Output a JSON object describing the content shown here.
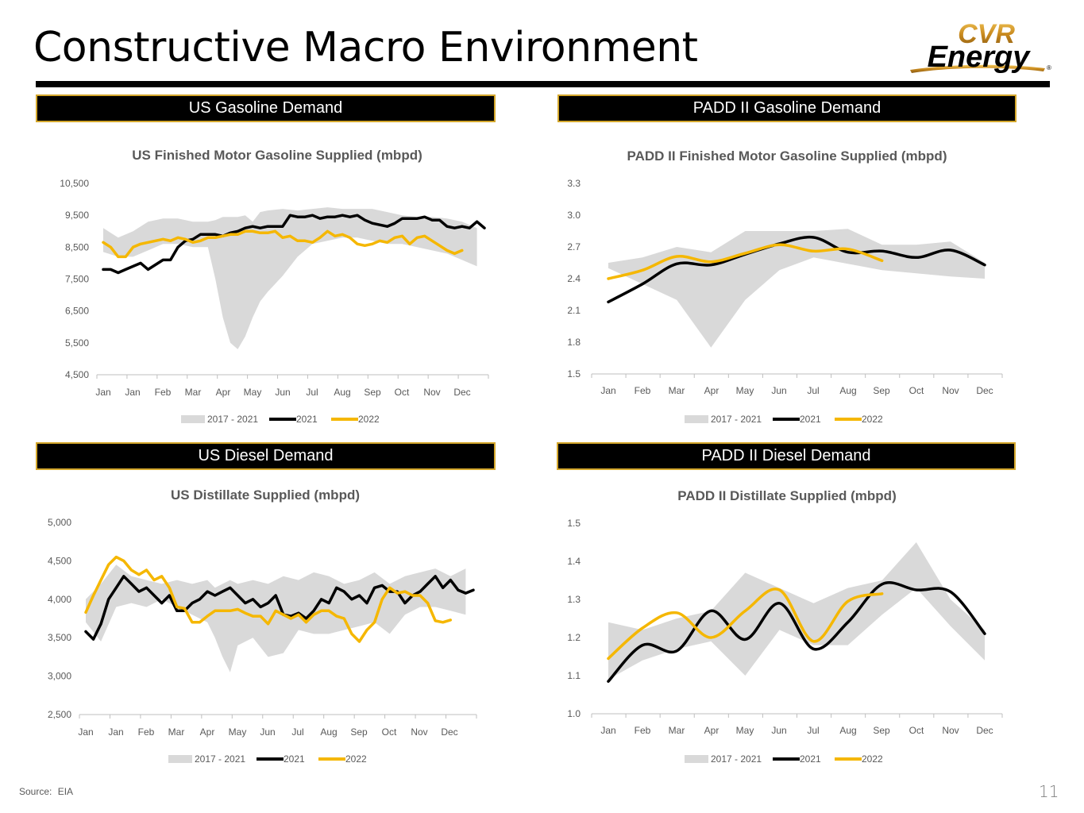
{
  "page": {
    "title": "Constructive Macro Environment",
    "logo_text_top": "CVR",
    "logo_text_bottom": "Energy",
    "logo_mark": "®",
    "source_label": "Source:",
    "source_value": "EIA",
    "page_number": "11"
  },
  "banners": {
    "us_gasoline": "US Gasoline Demand",
    "padd_gasoline": "PADD II Gasoline Demand",
    "us_diesel": "US Diesel Demand",
    "padd_diesel": "PADD II Diesel Demand"
  },
  "colors": {
    "accent_gold": "#d4a72c",
    "series_2022": "#f5b700",
    "series_2021": "#000000",
    "range_band": "#d9d9d9",
    "axis_text": "#595959"
  },
  "chart_data": [
    {
      "id": "us_gas",
      "type": "line",
      "title": "US Finished Motor Gasoline Supplied (mbpd)",
      "categories": [
        "Jan",
        "Jan",
        "Feb",
        "Mar",
        "Apr",
        "May",
        "Jun",
        "Jul",
        "Aug",
        "Sep",
        "Oct",
        "Nov",
        "Dec"
      ],
      "yticks": [
        "4,500",
        "5,500",
        "6,500",
        "7,500",
        "8,500",
        "9,500",
        "10,500"
      ],
      "ylim": [
        4500,
        10500
      ],
      "xlim": [
        0,
        51
      ],
      "legend": [
        "2017 - 2021",
        "2021",
        "2022"
      ],
      "legend_position": "bottom",
      "band": {
        "x": [
          0,
          2,
          4,
          6,
          8,
          10,
          12,
          14,
          15,
          16,
          17,
          18,
          19,
          20,
          21,
          22,
          24,
          26,
          28,
          30,
          32,
          34,
          36,
          38,
          40,
          42,
          44,
          46,
          48,
          49,
          50
        ],
        "high": [
          9100,
          8800,
          9000,
          9300,
          9400,
          9400,
          9300,
          9300,
          9350,
          9450,
          9450,
          9450,
          9500,
          9300,
          9600,
          9650,
          9700,
          9650,
          9700,
          9750,
          9700,
          9700,
          9700,
          9600,
          9500,
          9450,
          9450,
          9400,
          9300,
          9200,
          9100
        ],
        "low": [
          8350,
          8200,
          8200,
          8400,
          8600,
          8600,
          8500,
          8500,
          7500,
          6300,
          5500,
          5300,
          5700,
          6300,
          6800,
          7100,
          7600,
          8200,
          8600,
          8700,
          8800,
          8800,
          8700,
          8600,
          8600,
          8500,
          8400,
          8300,
          8100,
          8000,
          7900
        ]
      },
      "series": [
        {
          "name": "2021",
          "x": [
            0,
            1,
            2,
            3,
            4,
            5,
            6,
            7,
            8,
            9,
            10,
            11,
            12,
            13,
            14,
            15,
            16,
            17,
            18,
            19,
            20,
            21,
            22,
            23,
            24,
            25,
            26,
            27,
            28,
            29,
            30,
            31,
            32,
            33,
            34,
            35,
            36,
            37,
            38,
            39,
            40,
            41,
            42,
            43,
            44,
            45,
            46,
            47,
            48,
            49,
            50,
            51
          ],
          "values": [
            7800,
            7800,
            7700,
            7800,
            7900,
            8000,
            7800,
            7950,
            8100,
            8100,
            8500,
            8700,
            8750,
            8900,
            8900,
            8900,
            8850,
            8950,
            9000,
            9100,
            9150,
            9100,
            9150,
            9150,
            9150,
            9500,
            9450,
            9450,
            9500,
            9400,
            9450,
            9450,
            9500,
            9450,
            9500,
            9350,
            9250,
            9200,
            9150,
            9250,
            9400,
            9400,
            9400,
            9450,
            9350,
            9350,
            9150,
            9100,
            9150,
            9100,
            9300,
            9100
          ]
        },
        {
          "name": "2022",
          "x": [
            0,
            1,
            2,
            3,
            4,
            5,
            6,
            7,
            8,
            9,
            10,
            11,
            12,
            13,
            14,
            15,
            16,
            17,
            18,
            19,
            20,
            21,
            22,
            23,
            24,
            25,
            26,
            27,
            28,
            29,
            30,
            31,
            32,
            33,
            34,
            35,
            36,
            37,
            38,
            39,
            40,
            41,
            42,
            43,
            44,
            45,
            46,
            47,
            48
          ],
          "values": [
            8650,
            8500,
            8200,
            8200,
            8500,
            8600,
            8650,
            8700,
            8750,
            8700,
            8800,
            8750,
            8650,
            8700,
            8800,
            8800,
            8850,
            8900,
            8900,
            9000,
            9000,
            8950,
            8950,
            9000,
            8800,
            8850,
            8700,
            8700,
            8650,
            8800,
            9000,
            8850,
            8900,
            8800,
            8600,
            8550,
            8600,
            8700,
            8650,
            8800,
            8850,
            8600,
            8800,
            8850,
            8700,
            8550,
            8400,
            8300,
            8400
          ]
        }
      ]
    },
    {
      "id": "padd_gas",
      "type": "line",
      "title": "PADD II Finished Motor Gasoline Supplied (mbpd)",
      "categories": [
        "Jan",
        "Feb",
        "Mar",
        "Apr",
        "May",
        "Jun",
        "Jul",
        "Aug",
        "Sep",
        "Oct",
        "Nov",
        "Dec"
      ],
      "yticks": [
        "1.5",
        "1.8",
        "2.1",
        "2.4",
        "2.7",
        "3.0",
        "3.3"
      ],
      "ylim": [
        1.5,
        3.3
      ],
      "xlim": [
        0,
        11
      ],
      "legend": [
        "2017 - 2021",
        "2021",
        "2022"
      ],
      "legend_position": "bottom",
      "band": {
        "x": [
          0,
          1,
          2,
          3,
          4,
          5,
          6,
          7,
          8,
          9,
          10,
          11
        ],
        "high": [
          2.55,
          2.6,
          2.7,
          2.65,
          2.85,
          2.85,
          2.85,
          2.87,
          2.72,
          2.72,
          2.75,
          2.55
        ],
        "low": [
          2.5,
          2.35,
          2.2,
          1.75,
          2.2,
          2.48,
          2.6,
          2.54,
          2.48,
          2.45,
          2.42,
          2.4
        ]
      },
      "series": [
        {
          "name": "2021",
          "x": [
            0,
            1,
            2,
            3,
            4,
            5,
            6,
            7,
            8,
            9,
            10,
            11
          ],
          "values": [
            2.18,
            2.35,
            2.54,
            2.53,
            2.63,
            2.73,
            2.79,
            2.65,
            2.66,
            2.6,
            2.67,
            2.53
          ]
        },
        {
          "name": "2022",
          "x": [
            0,
            1,
            2,
            3,
            4,
            5,
            6,
            7,
            8
          ],
          "values": [
            2.4,
            2.48,
            2.61,
            2.56,
            2.64,
            2.72,
            2.66,
            2.68,
            2.57
          ]
        }
      ]
    },
    {
      "id": "us_diesel",
      "type": "line",
      "title": "US Distillate Supplied (mbpd)",
      "categories": [
        "Jan",
        "Jan",
        "Feb",
        "Mar",
        "Apr",
        "May",
        "Jun",
        "Jul",
        "Aug",
        "Sep",
        "Oct",
        "Nov",
        "Dec"
      ],
      "yticks": [
        "2,500",
        "3,000",
        "3,500",
        "4,000",
        "4,500",
        "5,000"
      ],
      "ylim": [
        2500,
        5000
      ],
      "xlim": [
        0,
        51
      ],
      "legend": [
        "2017 - 2021",
        "2021",
        "2022"
      ],
      "legend_position": "bottom",
      "band": {
        "x": [
          0,
          2,
          4,
          6,
          8,
          10,
          12,
          14,
          16,
          17,
          18,
          19,
          20,
          22,
          24,
          26,
          28,
          30,
          32,
          34,
          36,
          38,
          40,
          42,
          44,
          46,
          48,
          50
        ],
        "high": [
          4000,
          4200,
          4450,
          4300,
          4250,
          4200,
          4250,
          4200,
          4250,
          4150,
          4200,
          4250,
          4200,
          4250,
          4200,
          4300,
          4250,
          4350,
          4300,
          4200,
          4250,
          4350,
          4200,
          4300,
          4350,
          4400,
          4300,
          4400
        ],
        "low": [
          3700,
          3450,
          3900,
          3950,
          3900,
          4000,
          3900,
          3800,
          3700,
          3500,
          3250,
          3050,
          3400,
          3500,
          3250,
          3300,
          3600,
          3550,
          3550,
          3600,
          3650,
          3700,
          3550,
          3800,
          3900,
          3900,
          3850,
          3800
        ]
      },
      "series": [
        {
          "name": "2021",
          "x": [
            0,
            1,
            2,
            3,
            4,
            5,
            6,
            7,
            8,
            9,
            10,
            11,
            12,
            13,
            14,
            15,
            16,
            17,
            18,
            19,
            20,
            21,
            22,
            23,
            24,
            25,
            26,
            27,
            28,
            29,
            30,
            31,
            32,
            33,
            34,
            35,
            36,
            37,
            38,
            39,
            40,
            41,
            42,
            43,
            44,
            45,
            46,
            47,
            48,
            49,
            50,
            51
          ],
          "values": [
            3580,
            3480,
            3680,
            4000,
            4150,
            4300,
            4200,
            4100,
            4150,
            4050,
            3950,
            4050,
            3850,
            3850,
            3950,
            4000,
            4100,
            4050,
            4100,
            4150,
            4050,
            3950,
            4000,
            3900,
            3950,
            4050,
            3800,
            3780,
            3820,
            3750,
            3850,
            4000,
            3950,
            4150,
            4100,
            4000,
            4050,
            3950,
            4150,
            4180,
            4100,
            4100,
            3950,
            4050,
            4100,
            4200,
            4300,
            4150,
            4250,
            4120,
            4080,
            4120
          ]
        },
        {
          "name": "2022",
          "x": [
            0,
            1,
            2,
            3,
            4,
            5,
            6,
            7,
            8,
            9,
            10,
            11,
            12,
            13,
            14,
            15,
            16,
            17,
            18,
            19,
            20,
            21,
            22,
            23,
            24,
            25,
            26,
            27,
            28,
            29,
            30,
            31,
            32,
            33,
            34,
            35,
            36,
            37,
            38,
            39,
            40,
            41,
            42,
            43,
            44,
            45,
            46,
            47,
            48
          ],
          "values": [
            3830,
            4050,
            4250,
            4450,
            4550,
            4500,
            4380,
            4320,
            4380,
            4250,
            4300,
            4150,
            3900,
            3880,
            3700,
            3700,
            3780,
            3850,
            3850,
            3850,
            3870,
            3820,
            3780,
            3780,
            3680,
            3850,
            3800,
            3750,
            3800,
            3700,
            3800,
            3850,
            3850,
            3780,
            3750,
            3550,
            3450,
            3600,
            3700,
            4000,
            4150,
            4080,
            4100,
            4050,
            4050,
            3950,
            3720,
            3700,
            3730
          ]
        }
      ]
    },
    {
      "id": "padd_diesel",
      "type": "line",
      "title": "PADD II Distillate Supplied (mbpd)",
      "categories": [
        "Jan",
        "Feb",
        "Mar",
        "Apr",
        "May",
        "Jun",
        "Jul",
        "Aug",
        "Sep",
        "Oct",
        "Nov",
        "Dec"
      ],
      "yticks": [
        "1.0",
        "1.1",
        "1.2",
        "1.3",
        "1.4",
        "1.5"
      ],
      "ylim": [
        1.0,
        1.5
      ],
      "xlim": [
        0,
        11
      ],
      "legend": [
        "2017 - 2021",
        "2021",
        "2022"
      ],
      "legend_position": "bottom",
      "band": {
        "x": [
          0,
          1,
          2,
          3,
          4,
          5,
          6,
          7,
          8,
          9,
          10,
          11
        ],
        "high": [
          1.24,
          1.22,
          1.25,
          1.27,
          1.37,
          1.33,
          1.29,
          1.33,
          1.35,
          1.45,
          1.3,
          1.22
        ],
        "low": [
          1.09,
          1.14,
          1.17,
          1.19,
          1.1,
          1.22,
          1.18,
          1.18,
          1.26,
          1.33,
          1.23,
          1.14
        ]
      },
      "series": [
        {
          "name": "2021",
          "x": [
            0,
            1,
            2,
            3,
            4,
            5,
            6,
            7,
            8,
            9,
            10,
            11
          ],
          "values": [
            1.085,
            1.18,
            1.165,
            1.27,
            1.195,
            1.29,
            1.17,
            1.24,
            1.34,
            1.325,
            1.32,
            1.21
          ]
        },
        {
          "name": "2022",
          "x": [
            0,
            1,
            2,
            3,
            4,
            5,
            6,
            7,
            8
          ],
          "values": [
            1.145,
            1.225,
            1.265,
            1.2,
            1.27,
            1.325,
            1.19,
            1.295,
            1.315
          ]
        }
      ]
    }
  ]
}
